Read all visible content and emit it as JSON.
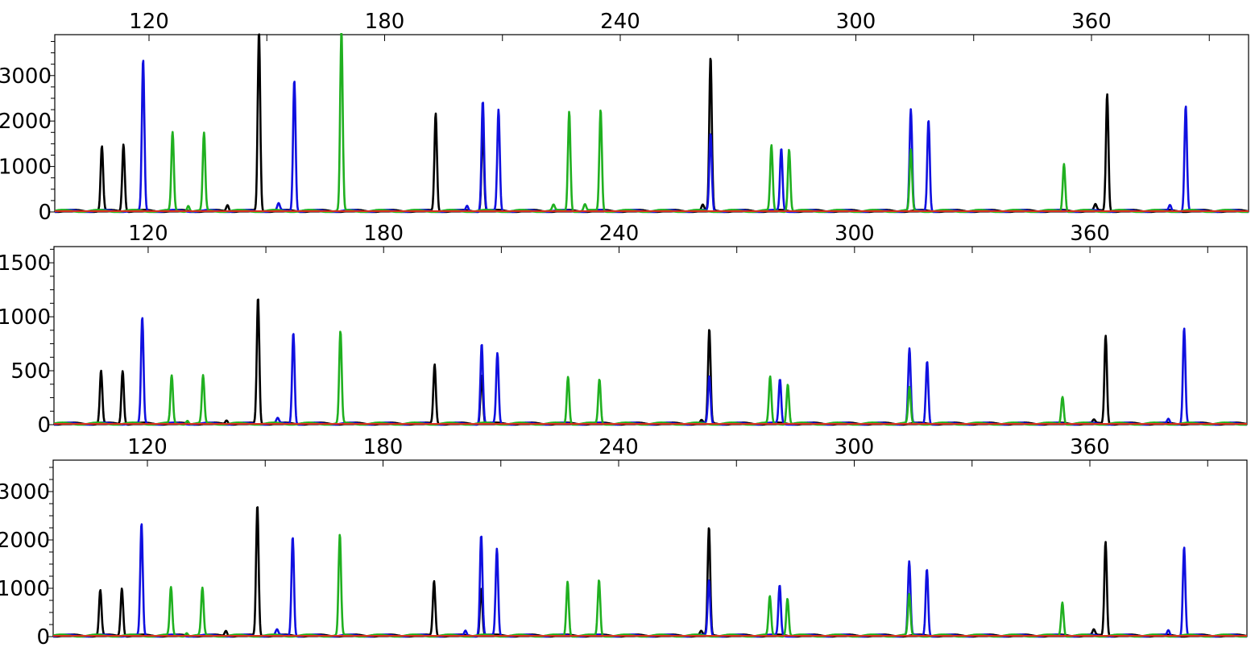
{
  "chart_data": [
    {
      "type": "line",
      "title": "",
      "xlabel": "",
      "ylabel": "",
      "xlim": [
        96,
        400
      ],
      "ylim": [
        0,
        3900
      ],
      "x_ticks": [
        120,
        180,
        240,
        300,
        360
      ],
      "y_ticks": [
        0,
        1000,
        2000,
        3000
      ],
      "grid": false,
      "series": [
        {
          "color": "#000000",
          "peaks": [
            {
              "x": 108,
              "y": 1420
            },
            {
              "x": 113.5,
              "y": 1480
            },
            {
              "x": 140,
              "y": 140
            },
            {
              "x": 148,
              "y": 3950
            },
            {
              "x": 193,
              "y": 2150
            },
            {
              "x": 205,
              "y": 1800
            },
            {
              "x": 261,
              "y": 130
            },
            {
              "x": 263,
              "y": 3370
            },
            {
              "x": 361,
              "y": 130
            },
            {
              "x": 364,
              "y": 2580
            }
          ]
        },
        {
          "color": "#1010e0",
          "peaks": [
            {
              "x": 118.5,
              "y": 3320
            },
            {
              "x": 153,
              "y": 150
            },
            {
              "x": 157,
              "y": 2900
            },
            {
              "x": 201,
              "y": 120
            },
            {
              "x": 205,
              "y": 2420
            },
            {
              "x": 209,
              "y": 2220
            },
            {
              "x": 263,
              "y": 1700
            },
            {
              "x": 281,
              "y": 1370
            },
            {
              "x": 314,
              "y": 2220
            },
            {
              "x": 318.5,
              "y": 2020
            },
            {
              "x": 380,
              "y": 130
            },
            {
              "x": 384,
              "y": 2320
            }
          ]
        },
        {
          "color": "#20b020",
          "peaks": [
            {
              "x": 126,
              "y": 1720
            },
            {
              "x": 130,
              "y": 130
            },
            {
              "x": 134,
              "y": 1700
            },
            {
              "x": 169,
              "y": 3950
            },
            {
              "x": 223,
              "y": 120
            },
            {
              "x": 227,
              "y": 2200
            },
            {
              "x": 231,
              "y": 140
            },
            {
              "x": 235,
              "y": 2230
            },
            {
              "x": 278.5,
              "y": 1430
            },
            {
              "x": 283,
              "y": 1370
            },
            {
              "x": 314,
              "y": 1330
            },
            {
              "x": 353,
              "y": 1050
            }
          ]
        },
        {
          "color": "#e0301e",
          "peaks": []
        }
      ]
    },
    {
      "type": "line",
      "title": "",
      "xlabel": "",
      "ylabel": "",
      "xlim": [
        96,
        400
      ],
      "ylim": [
        0,
        1650
      ],
      "x_ticks": [
        120,
        180,
        240,
        300,
        360
      ],
      "y_ticks": [
        0,
        500,
        1000,
        1500
      ],
      "grid": false,
      "series": [
        {
          "color": "#000000",
          "peaks": [
            {
              "x": 108,
              "y": 490
            },
            {
              "x": 113.5,
              "y": 495
            },
            {
              "x": 140,
              "y": 35
            },
            {
              "x": 148,
              "y": 1170
            },
            {
              "x": 193,
              "y": 550
            },
            {
              "x": 205,
              "y": 460
            },
            {
              "x": 261,
              "y": 30
            },
            {
              "x": 263,
              "y": 870
            },
            {
              "x": 361,
              "y": 30
            },
            {
              "x": 364,
              "y": 820
            }
          ]
        },
        {
          "color": "#1010e0",
          "peaks": [
            {
              "x": 118.5,
              "y": 980
            },
            {
              "x": 153,
              "y": 45
            },
            {
              "x": 157,
              "y": 850
            },
            {
              "x": 205,
              "y": 740
            },
            {
              "x": 209,
              "y": 650
            },
            {
              "x": 263,
              "y": 440
            },
            {
              "x": 281,
              "y": 410
            },
            {
              "x": 314,
              "y": 690
            },
            {
              "x": 318.5,
              "y": 585
            },
            {
              "x": 380,
              "y": 45
            },
            {
              "x": 384,
              "y": 890
            }
          ]
        },
        {
          "color": "#20b020",
          "peaks": [
            {
              "x": 126,
              "y": 440
            },
            {
              "x": 130,
              "y": 35
            },
            {
              "x": 134,
              "y": 440
            },
            {
              "x": 169,
              "y": 850
            },
            {
              "x": 227,
              "y": 440
            },
            {
              "x": 235,
              "y": 410
            },
            {
              "x": 278.5,
              "y": 430
            },
            {
              "x": 283,
              "y": 370
            },
            {
              "x": 314,
              "y": 330
            },
            {
              "x": 353,
              "y": 255
            }
          ]
        },
        {
          "color": "#e0301e",
          "peaks": []
        }
      ]
    },
    {
      "type": "line",
      "title": "",
      "xlabel": "",
      "ylabel": "",
      "xlim": [
        96,
        400
      ],
      "ylim": [
        0,
        3650
      ],
      "x_ticks": [
        120,
        180,
        240,
        300,
        360
      ],
      "y_ticks": [
        0,
        1000,
        2000,
        3000
      ],
      "grid": false,
      "series": [
        {
          "color": "#000000",
          "peaks": [
            {
              "x": 108,
              "y": 940
            },
            {
              "x": 113.5,
              "y": 990
            },
            {
              "x": 140,
              "y": 110
            },
            {
              "x": 148,
              "y": 2700
            },
            {
              "x": 193,
              "y": 1130
            },
            {
              "x": 205,
              "y": 1000
            },
            {
              "x": 261,
              "y": 90
            },
            {
              "x": 263,
              "y": 2230
            },
            {
              "x": 361,
              "y": 110
            },
            {
              "x": 364,
              "y": 1950
            }
          ]
        },
        {
          "color": "#1010e0",
          "peaks": [
            {
              "x": 118.5,
              "y": 2310
            },
            {
              "x": 153,
              "y": 110
            },
            {
              "x": 157,
              "y": 2060
            },
            {
              "x": 201,
              "y": 110
            },
            {
              "x": 205,
              "y": 2080
            },
            {
              "x": 209,
              "y": 1790
            },
            {
              "x": 263,
              "y": 1150
            },
            {
              "x": 281,
              "y": 1040
            },
            {
              "x": 314,
              "y": 1520
            },
            {
              "x": 318.5,
              "y": 1390
            },
            {
              "x": 380,
              "y": 110
            },
            {
              "x": 384,
              "y": 1840
            }
          ]
        },
        {
          "color": "#20b020",
          "peaks": [
            {
              "x": 126,
              "y": 990
            },
            {
              "x": 130,
              "y": 70
            },
            {
              "x": 134,
              "y": 970
            },
            {
              "x": 169,
              "y": 2080
            },
            {
              "x": 227,
              "y": 1130
            },
            {
              "x": 235,
              "y": 1150
            },
            {
              "x": 278.5,
              "y": 800
            },
            {
              "x": 283,
              "y": 780
            },
            {
              "x": 314,
              "y": 840
            },
            {
              "x": 353,
              "y": 700
            }
          ]
        },
        {
          "color": "#e0301e",
          "peaks": []
        }
      ]
    }
  ]
}
